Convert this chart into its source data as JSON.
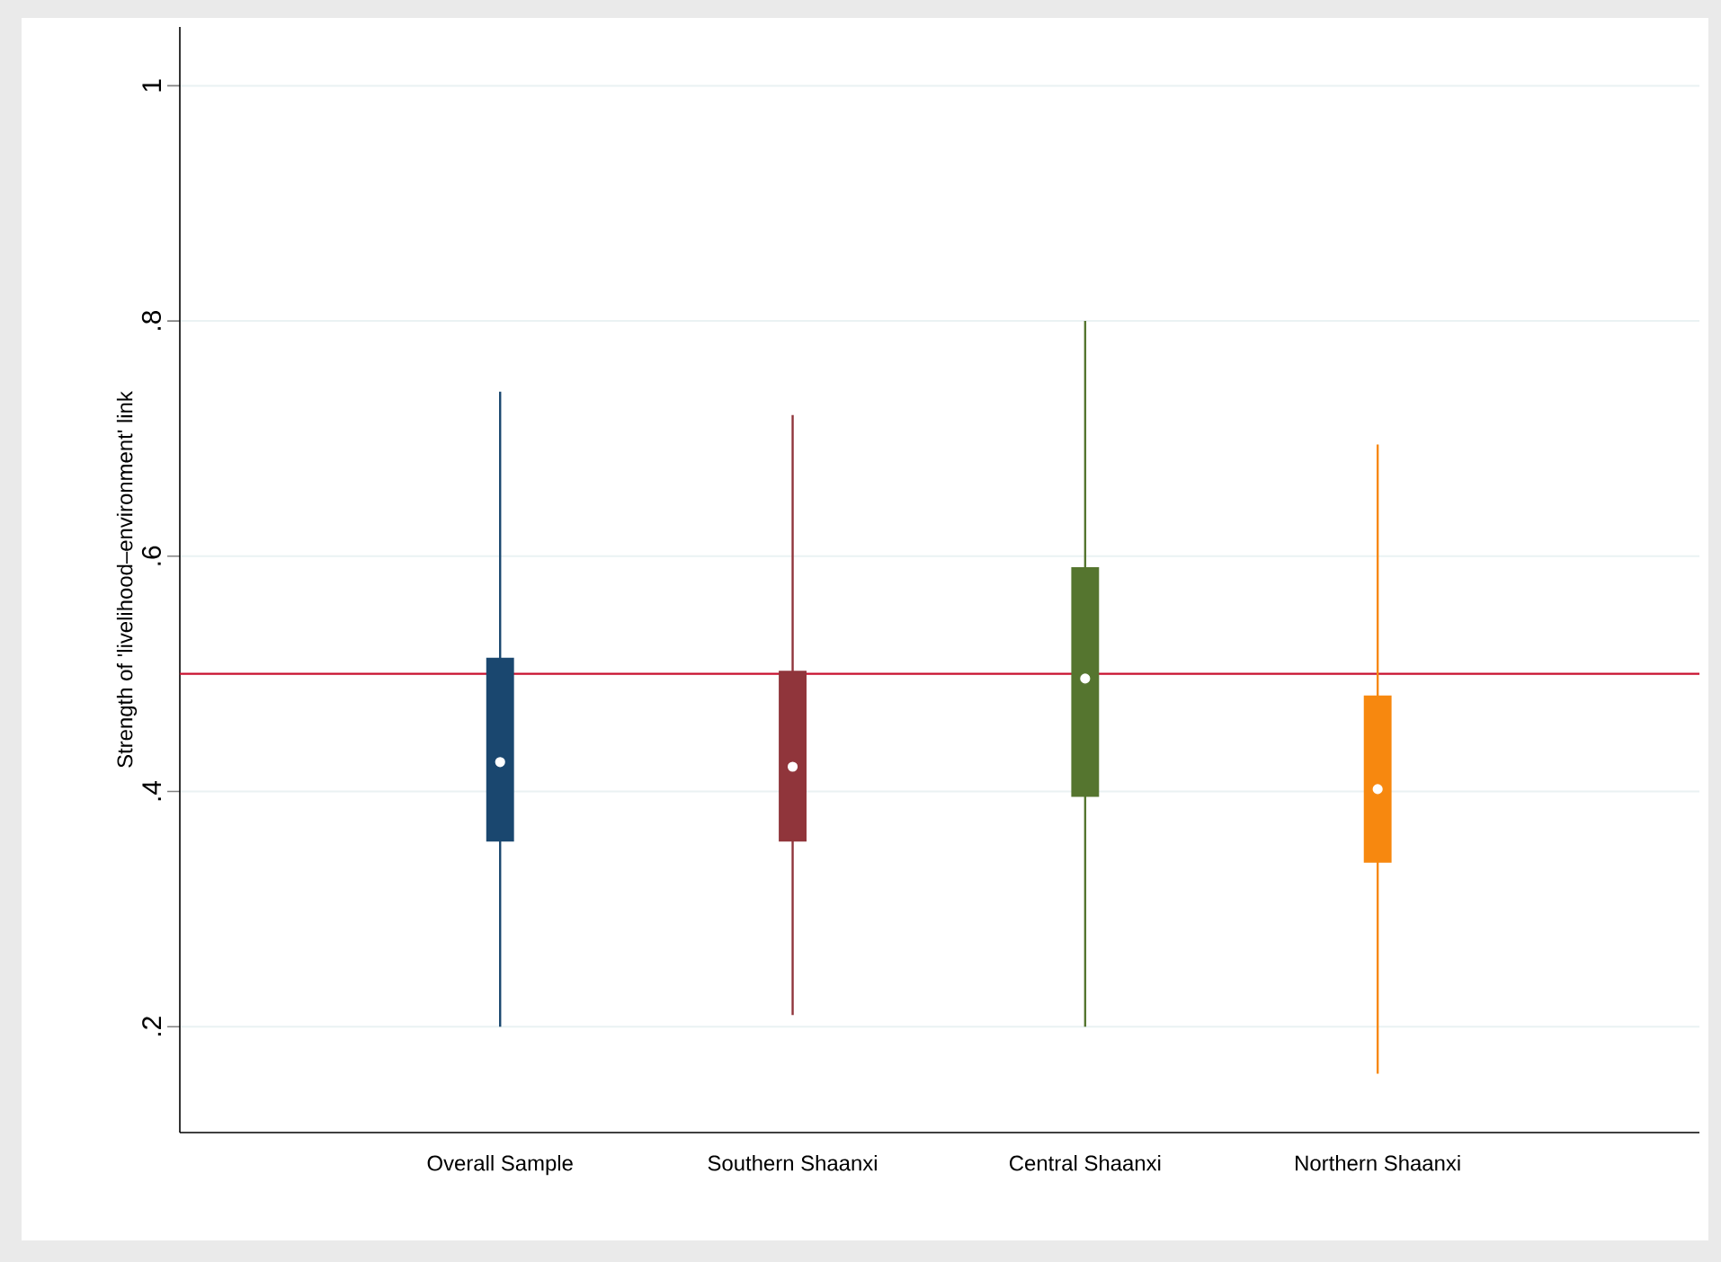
{
  "chart_data": {
    "type": "box",
    "ylabel": "Strength of 'livelihood–environment' link",
    "categories": [
      "Overall Sample",
      "Southern Shaanxi",
      "Central Shaanxi",
      "Northern Shaanxi"
    ],
    "colors": [
      "#1a476f",
      "#90353b",
      "#55752f",
      "#f7880f"
    ],
    "boxes": [
      {
        "low": 0.2,
        "q1": 0.358,
        "median": 0.425,
        "q3": 0.513,
        "high": 0.74
      },
      {
        "low": 0.21,
        "q1": 0.358,
        "median": 0.421,
        "q3": 0.502,
        "high": 0.72
      },
      {
        "low": 0.2,
        "q1": 0.396,
        "median": 0.496,
        "q3": 0.59,
        "high": 0.8
      },
      {
        "low": 0.16,
        "q1": 0.34,
        "median": 0.402,
        "q3": 0.481,
        "high": 0.695
      }
    ],
    "ylim": [
      0.11,
      1.05
    ],
    "yticks": [
      {
        "value": 0.2,
        "label": ".2"
      },
      {
        "value": 0.4,
        "label": ".4"
      },
      {
        "value": 0.6,
        "label": ".6"
      },
      {
        "value": 0.8,
        "label": ".8"
      },
      1
    ],
    "grid": "y",
    "ref_lines": [
      {
        "axis": "y",
        "value": 0.5,
        "color": "#c8102e"
      }
    ]
  }
}
